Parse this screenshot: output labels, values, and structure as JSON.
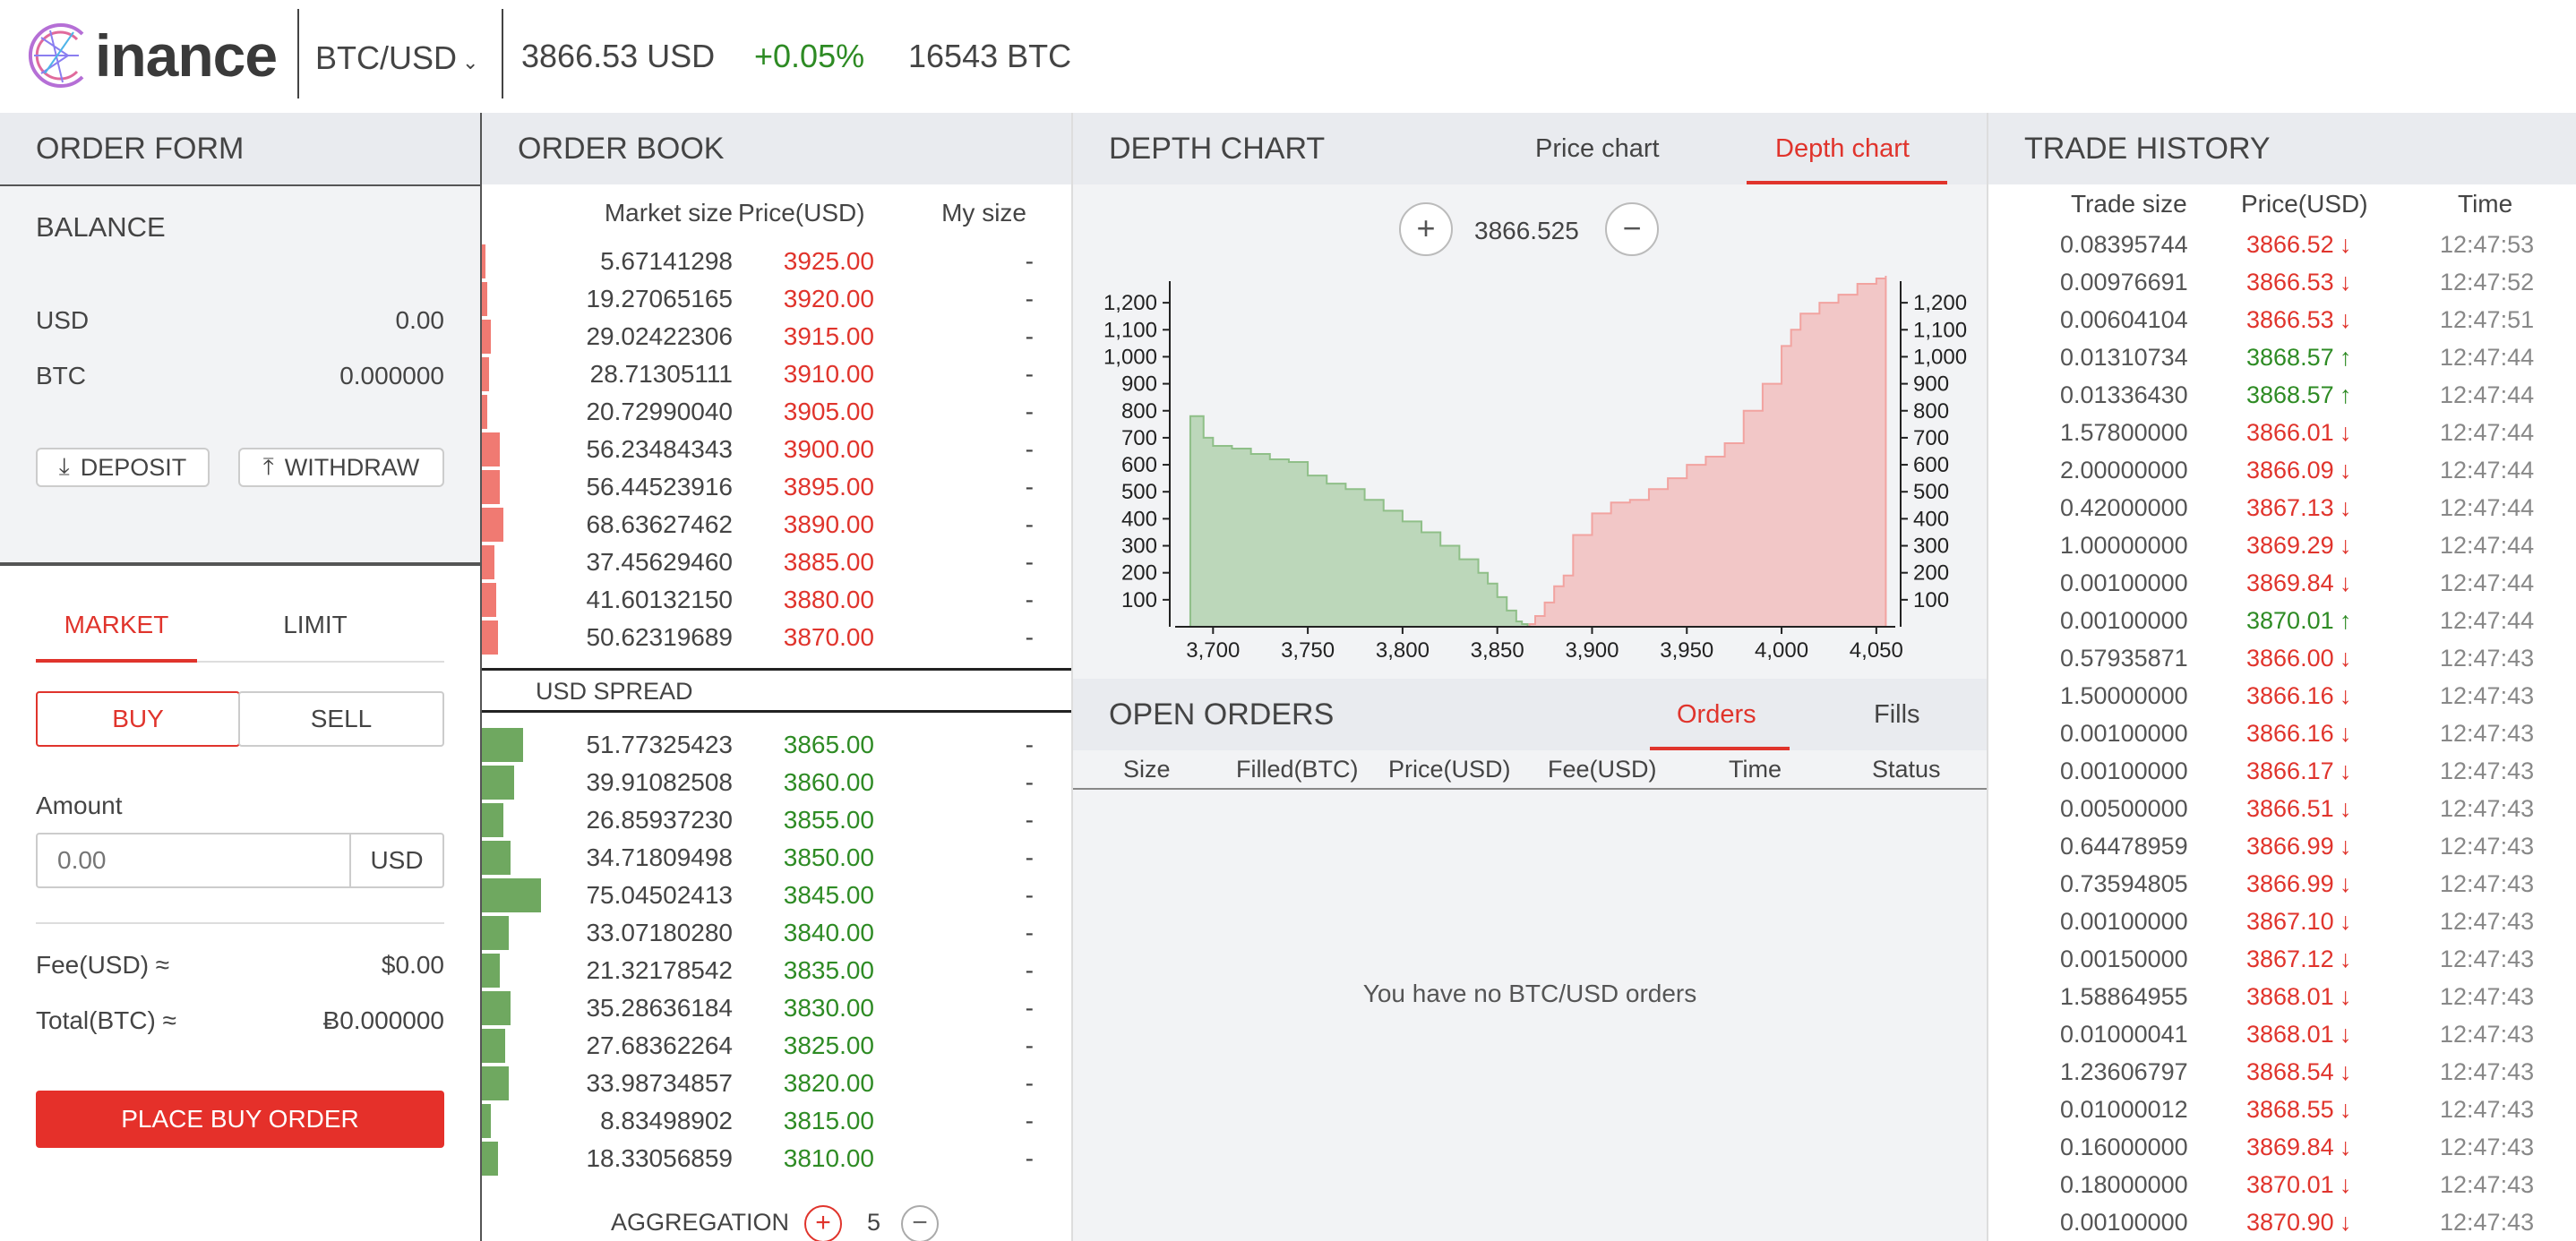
{
  "header": {
    "brand": "inance",
    "pair": "BTC/USD",
    "price": "3866.53 USD",
    "change": "+0.05%",
    "volume": "16543 BTC"
  },
  "order_form": {
    "title": "ORDER FORM",
    "balance_title": "BALANCE",
    "usd_label": "USD",
    "usd_value": "0.00",
    "btc_label": "BTC",
    "btc_value": "0.000000",
    "deposit": "DEPOSIT",
    "withdraw": "WITHDRAW",
    "tab_market": "MARKET",
    "tab_limit": "LIMIT",
    "buy": "BUY",
    "sell": "SELL",
    "amount_label": "Amount",
    "amount_placeholder": "0.00",
    "amount_unit": "USD",
    "fee_label": "Fee(USD) ≈",
    "fee_value": "$0.00",
    "total_label": "Total(BTC) ≈",
    "total_value": "Ƀ0.000000",
    "place_order": "PLACE BUY ORDER"
  },
  "order_book": {
    "title": "ORDER BOOK",
    "col_size": "Market size",
    "col_price": "Price(USD)",
    "col_my": "My size",
    "spread_label": "USD SPREAD",
    "aggregation_label": "AGGREGATION",
    "aggregation_value": "5",
    "asks": [
      [
        "5.67141298",
        "3925.00",
        4
      ],
      [
        "19.27065165",
        "3920.00",
        6
      ],
      [
        "29.02422306",
        "3915.00",
        10
      ],
      [
        "28.71305111",
        "3910.00",
        8
      ],
      [
        "20.72990040",
        "3905.00",
        6
      ],
      [
        "56.23484343",
        "3900.00",
        20
      ],
      [
        "56.44523916",
        "3895.00",
        20
      ],
      [
        "68.63627462",
        "3890.00",
        24
      ],
      [
        "37.45629460",
        "3885.00",
        14
      ],
      [
        "41.60132150",
        "3880.00",
        16
      ],
      [
        "50.62319689",
        "3870.00",
        18
      ]
    ],
    "bids": [
      [
        "51.77325423",
        "3865.00",
        46
      ],
      [
        "39.91082508",
        "3860.00",
        36
      ],
      [
        "26.85937230",
        "3855.00",
        24
      ],
      [
        "34.71809498",
        "3850.00",
        32
      ],
      [
        "75.04502413",
        "3845.00",
        66
      ],
      [
        "33.07180280",
        "3840.00",
        30
      ],
      [
        "21.32178542",
        "3835.00",
        20
      ],
      [
        "35.28636184",
        "3830.00",
        32
      ],
      [
        "27.68362264",
        "3825.00",
        26
      ],
      [
        "33.98734857",
        "3820.00",
        30
      ],
      [
        "8.83498902",
        "3815.00",
        10
      ],
      [
        "18.33056859",
        "3810.00",
        18
      ]
    ]
  },
  "depth": {
    "title": "DEPTH CHART",
    "tab_price": "Price chart",
    "tab_depth": "Depth chart",
    "mid": "3866.525",
    "chart_data": {
      "type": "area",
      "xlim": [
        3680,
        4060
      ],
      "ylim": [
        0,
        1280
      ],
      "x_ticks": [
        "3,700",
        "3,750",
        "3,800",
        "3,850",
        "3,900",
        "3,950",
        "4,000",
        "4,050"
      ],
      "y_ticks": [
        "100",
        "200",
        "300",
        "400",
        "500",
        "600",
        "700",
        "800",
        "900",
        "1,000",
        "1,100",
        "1,200"
      ],
      "series": [
        {
          "color": "#8fbf88",
          "x": [
            3688,
            3695,
            3700,
            3710,
            3720,
            3730,
            3740,
            3750,
            3760,
            3770,
            3780,
            3790,
            3800,
            3810,
            3820,
            3830,
            3840,
            3845,
            3850,
            3855,
            3860,
            3863,
            3866
          ],
          "values": [
            780,
            700,
            670,
            660,
            640,
            620,
            610,
            560,
            530,
            510,
            470,
            430,
            390,
            350,
            300,
            250,
            200,
            160,
            110,
            60,
            20,
            10,
            0
          ]
        },
        {
          "color": "#f2a3a0",
          "x": [
            3867,
            3870,
            3875,
            3880,
            3885,
            3890,
            3900,
            3910,
            3920,
            3930,
            3940,
            3950,
            3960,
            3970,
            3980,
            3990,
            4000,
            4005,
            4010,
            4020,
            4030,
            4040,
            4050,
            4055
          ],
          "values": [
            10,
            40,
            90,
            150,
            190,
            340,
            420,
            460,
            470,
            510,
            550,
            600,
            630,
            680,
            800,
            900,
            1040,
            1100,
            1160,
            1200,
            1230,
            1270,
            1290,
            1300
          ]
        }
      ]
    }
  },
  "open_orders": {
    "title": "OPEN ORDERS",
    "tab_orders": "Orders",
    "tab_fills": "Fills",
    "cols": [
      "Size",
      "Filled(BTC)",
      "Price(USD)",
      "Fee(USD)",
      "Time",
      "Status"
    ],
    "empty": "You have no BTC/USD orders"
  },
  "trade_history": {
    "title": "TRADE HISTORY",
    "col_size": "Trade size",
    "col_price": "Price(USD)",
    "col_time": "Time",
    "rows": [
      [
        "0.08395744",
        "3866.52",
        "12:47:53",
        "down"
      ],
      [
        "0.00976691",
        "3866.53",
        "12:47:52",
        "down"
      ],
      [
        "0.00604104",
        "3866.53",
        "12:47:51",
        "down"
      ],
      [
        "0.01310734",
        "3868.57",
        "12:47:44",
        "up"
      ],
      [
        "0.01336430",
        "3868.57",
        "12:47:44",
        "up"
      ],
      [
        "1.57800000",
        "3866.01",
        "12:47:44",
        "down"
      ],
      [
        "2.00000000",
        "3866.09",
        "12:47:44",
        "down"
      ],
      [
        "0.42000000",
        "3867.13",
        "12:47:44",
        "down"
      ],
      [
        "1.00000000",
        "3869.29",
        "12:47:44",
        "down"
      ],
      [
        "0.00100000",
        "3869.84",
        "12:47:44",
        "down"
      ],
      [
        "0.00100000",
        "3870.01",
        "12:47:44",
        "up"
      ],
      [
        "0.57935871",
        "3866.00",
        "12:47:43",
        "down"
      ],
      [
        "1.50000000",
        "3866.16",
        "12:47:43",
        "down"
      ],
      [
        "0.00100000",
        "3866.16",
        "12:47:43",
        "down"
      ],
      [
        "0.00100000",
        "3866.17",
        "12:47:43",
        "down"
      ],
      [
        "0.00500000",
        "3866.51",
        "12:47:43",
        "down"
      ],
      [
        "0.64478959",
        "3866.99",
        "12:47:43",
        "down"
      ],
      [
        "0.73594805",
        "3866.99",
        "12:47:43",
        "down"
      ],
      [
        "0.00100000",
        "3867.10",
        "12:47:43",
        "down"
      ],
      [
        "0.00150000",
        "3867.12",
        "12:47:43",
        "down"
      ],
      [
        "1.58864955",
        "3868.01",
        "12:47:43",
        "down"
      ],
      [
        "0.01000041",
        "3868.01",
        "12:47:43",
        "down"
      ],
      [
        "1.23606797",
        "3868.54",
        "12:47:43",
        "down"
      ],
      [
        "0.01000012",
        "3868.55",
        "12:47:43",
        "down"
      ],
      [
        "0.16000000",
        "3869.84",
        "12:47:43",
        "down"
      ],
      [
        "0.18000000",
        "3870.01",
        "12:47:43",
        "down"
      ],
      [
        "0.00100000",
        "3870.90",
        "12:47:43",
        "down"
      ]
    ]
  },
  "colors": {
    "red": "#e0342c",
    "green": "#2e8b24",
    "bid_bar": "#6fa860",
    "ask_bar": "#f07a72"
  }
}
